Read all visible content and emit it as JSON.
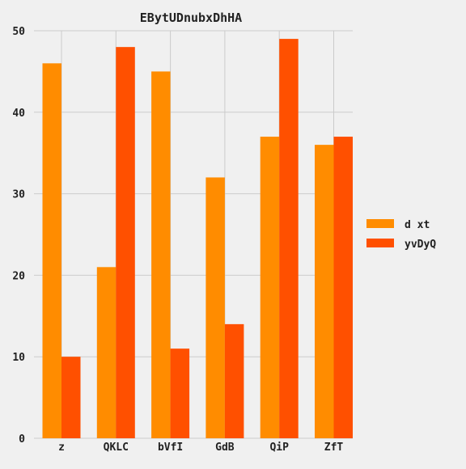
{
  "chart_data": {
    "type": "bar",
    "title": "EBytUDnubxDhHA",
    "xlabel": "",
    "ylabel": "",
    "categories": [
      "z",
      "QKLC",
      "bVfI",
      "GdB",
      "QiP",
      "ZfT"
    ],
    "series": [
      {
        "name": "d xt",
        "color": "#ff8c00",
        "values": [
          46,
          21,
          45,
          32,
          37,
          36
        ]
      },
      {
        "name": "yvDyQ",
        "color": "#ff5000",
        "values": [
          10,
          48,
          11,
          14,
          49,
          37
        ]
      }
    ],
    "ylim": [
      0,
      50
    ],
    "yticks": [
      0,
      10,
      20,
      30,
      40,
      50
    ],
    "grid": true,
    "legend_position": "right",
    "background_color": "#f0f0f0",
    "grid_color": "#cbcbcb"
  }
}
